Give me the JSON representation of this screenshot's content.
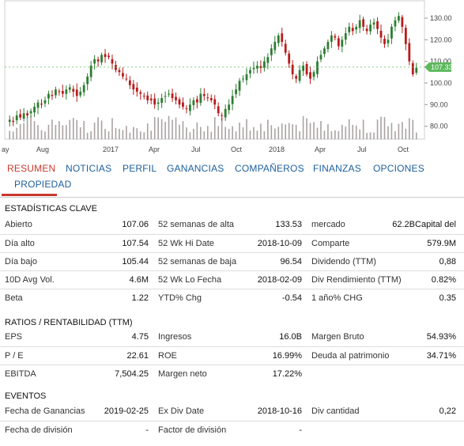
{
  "chart_data": {
    "type": "candlestick",
    "x_tick_labels": [
      "ay",
      "Aug",
      "2017",
      "Apr",
      "Jul",
      "Oct",
      "2018",
      "Apr",
      "Jul",
      "Oct"
    ],
    "y_tick_labels": [
      "130.00",
      "120.00",
      "110.00",
      "100.00",
      "90.00",
      "80.00"
    ],
    "ylim": [
      74,
      134
    ],
    "last_price_label": "107.33",
    "colors": {
      "up": "#2e7d32",
      "down": "#b71c1c",
      "volume": "#a9a2a2",
      "last_price_tag": "#5cb85c"
    },
    "close_series": [
      83,
      82,
      85,
      84,
      86,
      85,
      87,
      89,
      91,
      90,
      92,
      95,
      94,
      97,
      96,
      95,
      97,
      98,
      96,
      94,
      96,
      99,
      103,
      108,
      111,
      110,
      113,
      112,
      112,
      109,
      106,
      105,
      103,
      102,
      99,
      97,
      96,
      95,
      94,
      92,
      92,
      90,
      91,
      93,
      94,
      95,
      93,
      92,
      90,
      89,
      88,
      90,
      92,
      91,
      95,
      94,
      93,
      92,
      90,
      86,
      85,
      88,
      90,
      94,
      97,
      101,
      102,
      104,
      106,
      107,
      108,
      107,
      110,
      112,
      116,
      119,
      122,
      119,
      114,
      109,
      104,
      102,
      106,
      108,
      104,
      102,
      105,
      110,
      113,
      116,
      119,
      122,
      121,
      117,
      120,
      123,
      126,
      124,
      126,
      129,
      126,
      124,
      127,
      128,
      125,
      121,
      118,
      120,
      126,
      129,
      131,
      126,
      118,
      110,
      104,
      107
    ]
  },
  "tabs": {
    "items": [
      "RESUMEN",
      "NOTICIAS",
      "PERFIL",
      "GANANCIAS",
      "COMPAÑEROS",
      "FINANZAS",
      "OPCIONES"
    ],
    "second_row": "PROPIEDAD"
  },
  "key_stats": {
    "title": "ESTADÍSTICAS CLAVE",
    "rows": [
      [
        {
          "label": "Abierto",
          "value": "107.06"
        },
        {
          "label": "52 semanas de alta",
          "value": "133.53"
        },
        {
          "label": "mercado",
          "value": "62.2BCapital del"
        }
      ],
      [
        {
          "label": "Día alto",
          "value": "107.54"
        },
        {
          "label": "52 Wk Hi Date",
          "value": "2018-10-09"
        },
        {
          "label": "Comparte",
          "value": "579.9M"
        }
      ],
      [
        {
          "label": "Día bajo",
          "value": "105.44"
        },
        {
          "label": "52 semanas de baja",
          "value": "96.54"
        },
        {
          "label": "Dividendo (TTM)",
          "value": "0,88"
        }
      ],
      [
        {
          "label": "10D Avg Vol.",
          "value": "4.6M"
        },
        {
          "label": "52 Wk Lo Fecha",
          "value": "2018-02-09"
        },
        {
          "label": "Div Rendimiento (TTM)",
          "value": "0.82%"
        }
      ],
      [
        {
          "label": "Beta",
          "value": "1.22"
        },
        {
          "label": "YTD% Chg",
          "value": "-0.54"
        },
        {
          "label": "1 año% CHG",
          "value": "0.35"
        }
      ]
    ]
  },
  "ratios": {
    "title": "RATIOS / RENTABILIDAD (TTM)",
    "rows": [
      [
        {
          "label": "EPS",
          "value": "4.75"
        },
        {
          "label": "Ingresos",
          "value": "16.0B"
        },
        {
          "label": "Margen Bruto",
          "value": "54.93%"
        }
      ],
      [
        {
          "label": "P / E",
          "value": "22.61"
        },
        {
          "label": "ROE",
          "value": "16.99%"
        },
        {
          "label": "Deuda al patrimonio",
          "value": "34.71%"
        }
      ],
      [
        {
          "label": "EBITDA",
          "value": "7,504.25"
        },
        {
          "label": "Margen neto",
          "value": "17.22%"
        },
        {
          "label": "",
          "value": ""
        }
      ]
    ]
  },
  "events": {
    "title": "EVENTOS",
    "rows": [
      [
        {
          "label": "Fecha de Ganancias",
          "value": "2019-02-25"
        },
        {
          "label": "Ex Div Date",
          "value": "2018-10-16"
        },
        {
          "label": "Div cantidad",
          "value": "0,22"
        }
      ],
      [
        {
          "label": "Fecha de división",
          "value": "-"
        },
        {
          "label": "Factor de división",
          "value": "-"
        },
        {
          "label": "",
          "value": ""
        }
      ]
    ]
  }
}
